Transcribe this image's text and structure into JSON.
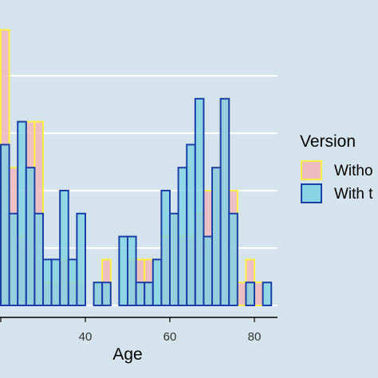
{
  "chart_data": {
    "type": "bar",
    "xlabel": "Age",
    "ylabel": "",
    "x_ticks": [
      "40",
      "60",
      "80"
    ],
    "x_tick_values": [
      40,
      60,
      80
    ],
    "xlim": [
      20,
      84
    ],
    "ylim": [
      0,
      5.4
    ],
    "bin_width": 2,
    "grid": "horizontal",
    "legend": {
      "title": "Version",
      "placement": "right",
      "entries": [
        "Witho",
        "With t"
      ]
    },
    "series": [
      {
        "name": "Witho",
        "fill": "#f0b8bd",
        "stroke": "#ffee44",
        "bins": [
          {
            "x": 21,
            "value": 4.8
          },
          {
            "x": 23,
            "value": 2.4
          },
          {
            "x": 25,
            "value": 1.2
          },
          {
            "x": 27,
            "value": 3.2
          },
          {
            "x": 29,
            "value": 3.2
          },
          {
            "x": 31,
            "value": 0.4
          },
          {
            "x": 33,
            "value": 0.4
          },
          {
            "x": 35,
            "value": 0.8
          },
          {
            "x": 37,
            "value": 0.4
          },
          {
            "x": 39,
            "value": 0.4
          },
          {
            "x": 43,
            "value": 0.4
          },
          {
            "x": 45,
            "value": 0.8
          },
          {
            "x": 51,
            "value": 0.8
          },
          {
            "x": 53,
            "value": 0.8
          },
          {
            "x": 55,
            "value": 0.8
          },
          {
            "x": 59,
            "value": 1.2
          },
          {
            "x": 61,
            "value": 1.6
          },
          {
            "x": 63,
            "value": 1.2
          },
          {
            "x": 65,
            "value": 1.2
          },
          {
            "x": 67,
            "value": 1.6
          },
          {
            "x": 69,
            "value": 2.0
          },
          {
            "x": 71,
            "value": 2.4
          },
          {
            "x": 73,
            "value": 3.6
          },
          {
            "x": 75,
            "value": 2.0
          },
          {
            "x": 77,
            "value": 0.4
          },
          {
            "x": 79,
            "value": 0.8
          },
          {
            "x": 81,
            "value": 0.4
          }
        ]
      },
      {
        "name": "With t",
        "fill": "#7fd2e4",
        "stroke": "#1a3fa8",
        "bins": [
          {
            "x": 21,
            "value": 2.8
          },
          {
            "x": 23,
            "value": 1.6
          },
          {
            "x": 25,
            "value": 3.2
          },
          {
            "x": 27,
            "value": 2.4
          },
          {
            "x": 29,
            "value": 1.6
          },
          {
            "x": 31,
            "value": 0.8
          },
          {
            "x": 33,
            "value": 0.8
          },
          {
            "x": 35,
            "value": 2.0
          },
          {
            "x": 37,
            "value": 0.8
          },
          {
            "x": 39,
            "value": 1.6
          },
          {
            "x": 43,
            "value": 0.4
          },
          {
            "x": 45,
            "value": 0.4
          },
          {
            "x": 49,
            "value": 1.2
          },
          {
            "x": 51,
            "value": 1.2
          },
          {
            "x": 53,
            "value": 0.4
          },
          {
            "x": 55,
            "value": 0.4
          },
          {
            "x": 57,
            "value": 0.8
          },
          {
            "x": 59,
            "value": 2.0
          },
          {
            "x": 61,
            "value": 1.6
          },
          {
            "x": 63,
            "value": 2.4
          },
          {
            "x": 65,
            "value": 2.8
          },
          {
            "x": 67,
            "value": 3.6
          },
          {
            "x": 69,
            "value": 1.2
          },
          {
            "x": 71,
            "value": 2.4
          },
          {
            "x": 73,
            "value": 3.6
          },
          {
            "x": 75,
            "value": 1.6
          },
          {
            "x": 79,
            "value": 0.4
          },
          {
            "x": 83,
            "value": 0.4
          }
        ]
      }
    ]
  }
}
